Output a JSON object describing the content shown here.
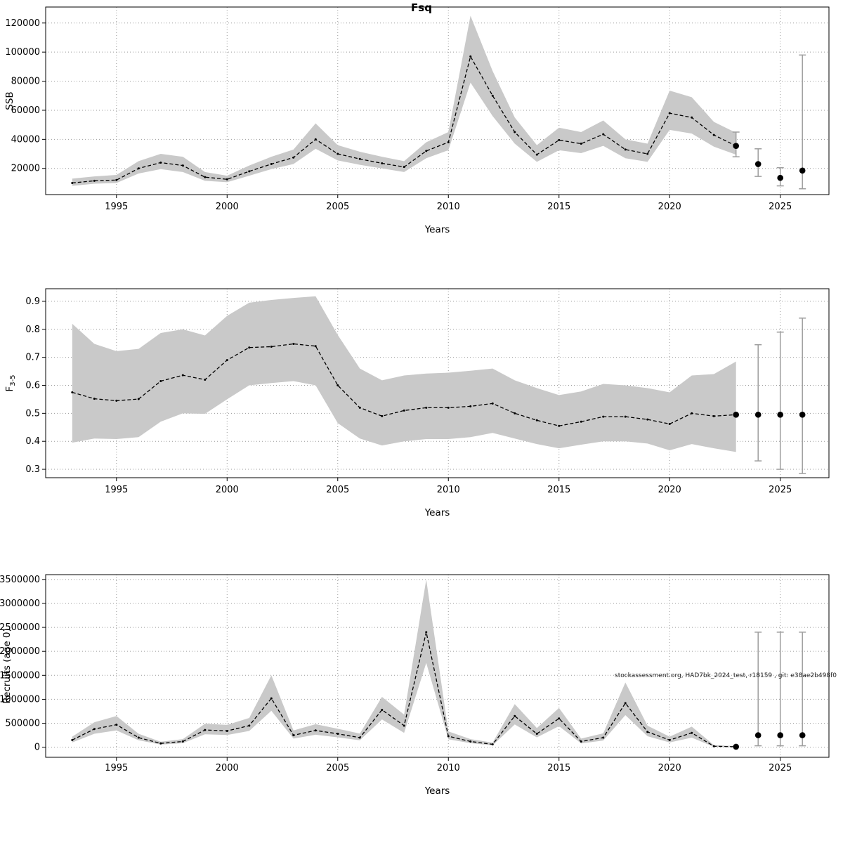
{
  "page": {
    "title": "Fsq",
    "watermark": "stockassessment.org, HAD7bk_2024_test, r18159 , git: e38ae2b498f0"
  },
  "chart_data": [
    {
      "type": "line",
      "name": "ssb",
      "xlabel": "Years",
      "ylabel": "SSB",
      "xlim": [
        1991.8,
        2027.2
      ],
      "ylim": [
        2000,
        131000
      ],
      "xticks": [
        1995,
        2000,
        2005,
        2010,
        2015,
        2020,
        2025
      ],
      "yticks": [
        20000,
        40000,
        60000,
        80000,
        100000,
        120000
      ],
      "ytick_labels": [
        "20000",
        "40000",
        "60000",
        "80000",
        "100000",
        "120000"
      ],
      "grid": true,
      "legend": "none",
      "band_color": "#c9c9c9",
      "line_color": "#000000",
      "errorbar_color": "#9e9e9e",
      "x": [
        1993,
        1994,
        1995,
        1996,
        1997,
        1998,
        1999,
        2000,
        2001,
        2002,
        2003,
        2004,
        2005,
        2006,
        2007,
        2008,
        2009,
        2010,
        2011,
        2012,
        2013,
        2014,
        2015,
        2016,
        2017,
        2018,
        2019,
        2020,
        2021,
        2022,
        2023
      ],
      "estimate": [
        10000,
        11500,
        12000,
        20000,
        24000,
        22000,
        14000,
        12500,
        18000,
        23000,
        27500,
        40000,
        30000,
        26500,
        23500,
        21000,
        32000,
        38000,
        97000,
        70000,
        45000,
        29500,
        39500,
        37000,
        43500,
        33000,
        30000,
        58000,
        55000,
        43000,
        35500
      ],
      "lower": [
        8000,
        9500,
        10000,
        16500,
        19500,
        17500,
        11500,
        10500,
        15000,
        19500,
        23000,
        33500,
        25500,
        22500,
        20000,
        17500,
        27000,
        32500,
        79000,
        56000,
        37000,
        24500,
        32500,
        30500,
        35500,
        27000,
        24500,
        46500,
        44000,
        35000,
        29500
      ],
      "upper": [
        13000,
        14500,
        15500,
        25000,
        30000,
        28000,
        17500,
        15000,
        22000,
        28000,
        33000,
        51000,
        36000,
        31500,
        28000,
        25000,
        38000,
        45000,
        125000,
        87000,
        55000,
        36000,
        48000,
        45000,
        53000,
        40000,
        37000,
        73500,
        69000,
        52000,
        44500
      ],
      "forecast": {
        "x": [
          2023,
          2024,
          2025,
          2026
        ],
        "values": [
          35500,
          23000,
          13500,
          18500
        ],
        "lower": [
          28000,
          14500,
          8000,
          6000
        ],
        "upper": [
          45000,
          33500,
          20500,
          98000
        ]
      }
    },
    {
      "type": "line",
      "name": "fbar",
      "xlabel": "Years",
      "ylabel": "F",
      "ylabel_sub": "3-5",
      "xlim": [
        1991.8,
        2027.2
      ],
      "ylim": [
        0.27,
        0.945
      ],
      "xticks": [
        1995,
        2000,
        2005,
        2010,
        2015,
        2020,
        2025
      ],
      "yticks": [
        0.3,
        0.4,
        0.5,
        0.6,
        0.7,
        0.8,
        0.9
      ],
      "ytick_labels": [
        "0.3",
        "0.4",
        "0.5",
        "0.6",
        "0.7",
        "0.8",
        "0.9"
      ],
      "grid": true,
      "legend": "none",
      "band_color": "#c9c9c9",
      "line_color": "#000000",
      "errorbar_color": "#9e9e9e",
      "x": [
        1993,
        1994,
        1995,
        1996,
        1997,
        1998,
        1999,
        2000,
        2001,
        2002,
        2003,
        2004,
        2005,
        2006,
        2007,
        2008,
        2009,
        2010,
        2011,
        2012,
        2013,
        2014,
        2015,
        2016,
        2017,
        2018,
        2019,
        2020,
        2021,
        2022,
        2023
      ],
      "estimate": [
        0.575,
        0.552,
        0.545,
        0.551,
        0.615,
        0.636,
        0.62,
        0.69,
        0.735,
        0.738,
        0.748,
        0.74,
        0.6,
        0.52,
        0.49,
        0.51,
        0.52,
        0.52,
        0.525,
        0.535,
        0.5,
        0.475,
        0.455,
        0.47,
        0.488,
        0.488,
        0.478,
        0.462,
        0.5,
        0.49,
        0.495
      ],
      "lower": [
        0.395,
        0.41,
        0.408,
        0.415,
        0.47,
        0.5,
        0.498,
        0.55,
        0.6,
        0.608,
        0.615,
        0.6,
        0.465,
        0.41,
        0.385,
        0.4,
        0.408,
        0.408,
        0.415,
        0.43,
        0.41,
        0.39,
        0.375,
        0.388,
        0.4,
        0.4,
        0.392,
        0.368,
        0.39,
        0.375,
        0.362
      ],
      "upper": [
        0.82,
        0.748,
        0.722,
        0.73,
        0.787,
        0.8,
        0.778,
        0.848,
        0.895,
        0.905,
        0.912,
        0.918,
        0.78,
        0.66,
        0.618,
        0.635,
        0.642,
        0.645,
        0.652,
        0.66,
        0.618,
        0.59,
        0.565,
        0.578,
        0.605,
        0.6,
        0.59,
        0.575,
        0.635,
        0.64,
        0.685
      ],
      "forecast": {
        "x": [
          2023,
          2024,
          2025,
          2026
        ],
        "values": [
          0.495,
          0.495,
          0.495,
          0.495
        ],
        "lower": [
          null,
          0.33,
          0.3,
          0.285
        ],
        "upper": [
          null,
          0.745,
          0.79,
          0.84
        ]
      }
    },
    {
      "type": "line",
      "name": "recruits",
      "xlabel": "Years",
      "ylabel": "Recruits (age 0)",
      "xlim": [
        1991.8,
        2027.2
      ],
      "ylim": [
        -210000,
        3600000
      ],
      "xticks": [
        1995,
        2000,
        2005,
        2010,
        2015,
        2020,
        2025
      ],
      "yticks": [
        0,
        500000,
        1000000,
        1500000,
        2000000,
        2500000,
        3000000,
        3500000
      ],
      "ytick_labels": [
        "0",
        "500000",
        "1000000",
        "1500000",
        "2000000",
        "2500000",
        "3000000",
        "3500000"
      ],
      "grid": true,
      "legend": "none",
      "band_color": "#c9c9c9",
      "line_color": "#000000",
      "errorbar_color": "#9e9e9e",
      "x": [
        1993,
        1994,
        1995,
        1996,
        1997,
        1998,
        1999,
        2000,
        2001,
        2002,
        2003,
        2004,
        2005,
        2006,
        2007,
        2008,
        2009,
        2010,
        2011,
        2012,
        2013,
        2014,
        2015,
        2016,
        2017,
        2018,
        2019,
        2020,
        2021,
        2022,
        2023
      ],
      "estimate": [
        150000,
        380000,
        470000,
        200000,
        80000,
        120000,
        360000,
        340000,
        450000,
        1020000,
        250000,
        350000,
        280000,
        200000,
        780000,
        450000,
        2400000,
        230000,
        120000,
        60000,
        650000,
        280000,
        600000,
        120000,
        200000,
        920000,
        320000,
        150000,
        300000,
        20000,
        10000
      ],
      "lower": [
        100000,
        280000,
        350000,
        145000,
        55000,
        85000,
        270000,
        255000,
        340000,
        760000,
        180000,
        260000,
        205000,
        145000,
        580000,
        300000,
        1760000,
        165000,
        85000,
        40000,
        475000,
        205000,
        440000,
        80000,
        140000,
        670000,
        230000,
        100000,
        200000,
        8000,
        2000
      ],
      "upper": [
        220000,
        520000,
        650000,
        280000,
        115000,
        170000,
        490000,
        465000,
        610000,
        1500000,
        350000,
        480000,
        385000,
        285000,
        1050000,
        680000,
        3500000,
        330000,
        170000,
        95000,
        900000,
        400000,
        820000,
        180000,
        290000,
        1350000,
        450000,
        220000,
        430000,
        45000,
        25000
      ],
      "forecast": {
        "x": [
          2023,
          2024,
          2025,
          2026
        ],
        "values": [
          10000,
          250000,
          250000,
          250000
        ],
        "lower": [
          null,
          30000,
          30000,
          30000
        ],
        "upper": [
          null,
          2400000,
          2400000,
          2400000
        ]
      }
    }
  ]
}
